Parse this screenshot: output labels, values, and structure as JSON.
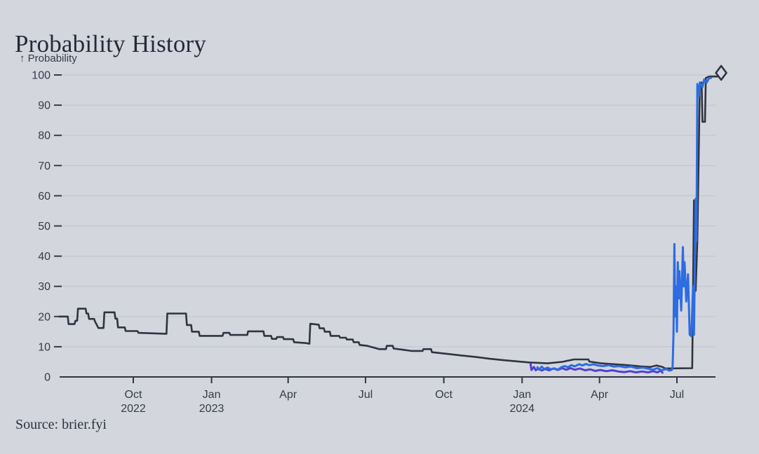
{
  "page": {
    "title": "Probability History",
    "y_axis_title": "↑ Probability",
    "source": "Source: brier.fyi"
  },
  "colors": {
    "background": "#d4d6de",
    "title_text": "#242a38",
    "axis_text": "#353b49",
    "gridline": "#c2c5cf",
    "baseline": "#2f3542",
    "series_dark": "#2e3440",
    "series_blue": "#2d6ce2",
    "series_purple": "#5340cf"
  },
  "chart_data": {
    "type": "line",
    "title": "Probability History",
    "ylabel": "Probability",
    "xlabel": "",
    "ylim": [
      0,
      100
    ],
    "grid": "horizontal",
    "legend": "none",
    "x_domain": [
      "2022-07-06",
      "2024-08-22"
    ],
    "y_ticks": [
      0,
      10,
      20,
      30,
      40,
      50,
      60,
      70,
      80,
      90,
      100
    ],
    "x_ticks": [
      {
        "date": "2022-10-01",
        "label": "Oct",
        "year": "2022"
      },
      {
        "date": "2023-01-01",
        "label": "Jan",
        "year": "2023"
      },
      {
        "date": "2023-04-01",
        "label": "Apr",
        "year": ""
      },
      {
        "date": "2023-07-01",
        "label": "Jul",
        "year": ""
      },
      {
        "date": "2023-10-01",
        "label": "Oct",
        "year": ""
      },
      {
        "date": "2024-01-01",
        "label": "Jan",
        "year": "2024"
      },
      {
        "date": "2024-04-01",
        "label": "Apr",
        "year": ""
      },
      {
        "date": "2024-07-01",
        "label": "Jul",
        "year": ""
      }
    ],
    "series": [
      {
        "name": "market-dark",
        "color_key": "series_dark",
        "stroke_width": 2.6,
        "points": [
          [
            "2022-07-06",
            20
          ],
          [
            "2022-07-16",
            20
          ],
          [
            "2022-07-17",
            17.5
          ],
          [
            "2022-07-24",
            17.5
          ],
          [
            "2022-07-25",
            18.6
          ],
          [
            "2022-07-27",
            18.6
          ],
          [
            "2022-07-28",
            22.6
          ],
          [
            "2022-08-06",
            22.6
          ],
          [
            "2022-08-07",
            21
          ],
          [
            "2022-08-09",
            21
          ],
          [
            "2022-08-10",
            19.2
          ],
          [
            "2022-08-16",
            19.2
          ],
          [
            "2022-08-17",
            18.4
          ],
          [
            "2022-08-21",
            16.2
          ],
          [
            "2022-08-27",
            16.2
          ],
          [
            "2022-08-28",
            21.4
          ],
          [
            "2022-09-09",
            21.4
          ],
          [
            "2022-09-10",
            19.3
          ],
          [
            "2022-09-12",
            19.3
          ],
          [
            "2022-09-13",
            16.4
          ],
          [
            "2022-09-21",
            16.4
          ],
          [
            "2022-09-22",
            15.2
          ],
          [
            "2022-10-06",
            15.2
          ],
          [
            "2022-10-07",
            14.6
          ],
          [
            "2022-11-09",
            14.3
          ],
          [
            "2022-11-10",
            21
          ],
          [
            "2022-12-02",
            21
          ],
          [
            "2022-12-03",
            17.2
          ],
          [
            "2022-12-08",
            17.2
          ],
          [
            "2022-12-09",
            15
          ],
          [
            "2022-12-17",
            15
          ],
          [
            "2022-12-18",
            13.6
          ],
          [
            "2023-01-14",
            13.6
          ],
          [
            "2023-01-15",
            14.6
          ],
          [
            "2023-01-22",
            14.6
          ],
          [
            "2023-01-23",
            13.9
          ],
          [
            "2023-02-12",
            13.9
          ],
          [
            "2023-02-13",
            15.1
          ],
          [
            "2023-03-03",
            15.1
          ],
          [
            "2023-03-04",
            13.6
          ],
          [
            "2023-03-12",
            13.6
          ],
          [
            "2023-03-13",
            12.6
          ],
          [
            "2023-03-18",
            12.6
          ],
          [
            "2023-03-19",
            13.2
          ],
          [
            "2023-03-26",
            13.2
          ],
          [
            "2023-03-27",
            12.5
          ],
          [
            "2023-04-07",
            12.5
          ],
          [
            "2023-04-08",
            11.5
          ],
          [
            "2023-04-22",
            11.2
          ],
          [
            "2023-04-26",
            11
          ],
          [
            "2023-04-27",
            17.6
          ],
          [
            "2023-05-07",
            17.3
          ],
          [
            "2023-05-08",
            16.1
          ],
          [
            "2023-05-13",
            16.1
          ],
          [
            "2023-05-14",
            15
          ],
          [
            "2023-05-20",
            15
          ],
          [
            "2023-05-21",
            13.6
          ],
          [
            "2023-05-31",
            13.6
          ],
          [
            "2023-06-01",
            13
          ],
          [
            "2023-06-08",
            13
          ],
          [
            "2023-06-09",
            12.4
          ],
          [
            "2023-06-16",
            12.4
          ],
          [
            "2023-06-17",
            11.5
          ],
          [
            "2023-06-23",
            11.5
          ],
          [
            "2023-06-24",
            10.6
          ],
          [
            "2023-07-03",
            10.3
          ],
          [
            "2023-07-17",
            9.2
          ],
          [
            "2023-07-25",
            9.2
          ],
          [
            "2023-07-26",
            10.3
          ],
          [
            "2023-08-02",
            10.3
          ],
          [
            "2023-08-03",
            9.4
          ],
          [
            "2023-08-14",
            9
          ],
          [
            "2023-08-24",
            8.6
          ],
          [
            "2023-09-06",
            8.6
          ],
          [
            "2023-09-07",
            9.2
          ],
          [
            "2023-09-16",
            9.2
          ],
          [
            "2023-09-17",
            8.2
          ],
          [
            "2023-10-03",
            7.7
          ],
          [
            "2023-10-22",
            7.1
          ],
          [
            "2023-11-08",
            6.6
          ],
          [
            "2023-11-24",
            6
          ],
          [
            "2023-12-09",
            5.6
          ],
          [
            "2023-12-24",
            5.2
          ],
          [
            "2024-01-09",
            4.8
          ],
          [
            "2024-01-31",
            4.5
          ],
          [
            "2024-02-17",
            5
          ],
          [
            "2024-03-02",
            5.8
          ],
          [
            "2024-03-19",
            5.8
          ],
          [
            "2024-03-20",
            5.1
          ],
          [
            "2024-04-03",
            4.5
          ],
          [
            "2024-04-19",
            4.2
          ],
          [
            "2024-05-04",
            3.9
          ],
          [
            "2024-05-19",
            3.5
          ],
          [
            "2024-05-31",
            3.3
          ],
          [
            "2024-06-07",
            3.8
          ],
          [
            "2024-06-14",
            3.3
          ],
          [
            "2024-06-17",
            2.8
          ],
          [
            "2024-07-19",
            2.9
          ],
          [
            "2024-07-21",
            58.5
          ],
          [
            "2024-07-23",
            28.5
          ],
          [
            "2024-07-25",
            45
          ],
          [
            "2024-07-28",
            97.5
          ],
          [
            "2024-07-30",
            97.5
          ],
          [
            "2024-07-31",
            84.5
          ],
          [
            "2024-08-03",
            84.5
          ],
          [
            "2024-08-04",
            99
          ],
          [
            "2024-08-08",
            99.5
          ],
          [
            "2024-08-19",
            99.5
          ],
          [
            "2024-08-20",
            100.3
          ]
        ]
      },
      {
        "name": "market-purple",
        "color_key": "series_purple",
        "stroke_width": 3,
        "points": [
          [
            "2024-01-11",
            4.3
          ],
          [
            "2024-01-12",
            2.3
          ],
          [
            "2024-01-15",
            3.3
          ],
          [
            "2024-01-17",
            2.2
          ],
          [
            "2024-01-20",
            2.8
          ],
          [
            "2024-01-24",
            2.1
          ],
          [
            "2024-01-28",
            2.6
          ],
          [
            "2024-02-02",
            2.2
          ],
          [
            "2024-02-07",
            2.8
          ],
          [
            "2024-02-12",
            2.3
          ],
          [
            "2024-02-17",
            2.9
          ],
          [
            "2024-02-22",
            2.4
          ],
          [
            "2024-02-27",
            2.9
          ],
          [
            "2024-03-03",
            2.4
          ],
          [
            "2024-03-09",
            2.8
          ],
          [
            "2024-03-15",
            2.2
          ],
          [
            "2024-03-21",
            2.5
          ],
          [
            "2024-03-27",
            2.0
          ],
          [
            "2024-04-02",
            2.3
          ],
          [
            "2024-04-09",
            1.9
          ],
          [
            "2024-04-16",
            2.2
          ],
          [
            "2024-04-23",
            1.8
          ],
          [
            "2024-04-30",
            1.6
          ],
          [
            "2024-05-07",
            1.9
          ],
          [
            "2024-05-14",
            1.5
          ],
          [
            "2024-05-21",
            1.8
          ],
          [
            "2024-05-28",
            1.5
          ],
          [
            "2024-06-03",
            1.9
          ],
          [
            "2024-06-08",
            1.5
          ],
          [
            "2024-06-12",
            2.1
          ],
          [
            "2024-06-14",
            1.4
          ]
        ]
      },
      {
        "name": "market-blue",
        "color_key": "series_blue",
        "stroke_width": 3,
        "points": [
          [
            "2024-01-19",
            3.2
          ],
          [
            "2024-01-21",
            2.4
          ],
          [
            "2024-01-24",
            3.4
          ],
          [
            "2024-01-27",
            2.6
          ],
          [
            "2024-01-31",
            3.1
          ],
          [
            "2024-02-04",
            2.5
          ],
          [
            "2024-02-08",
            2.8
          ],
          [
            "2024-02-12",
            2.4
          ],
          [
            "2024-02-16",
            3.2
          ],
          [
            "2024-02-20",
            3.6
          ],
          [
            "2024-02-24",
            3.2
          ],
          [
            "2024-02-28",
            3.9
          ],
          [
            "2024-03-03",
            3.5
          ],
          [
            "2024-03-08",
            4.2
          ],
          [
            "2024-03-12",
            3.8
          ],
          [
            "2024-03-16",
            4.3
          ],
          [
            "2024-03-20",
            3.9
          ],
          [
            "2024-03-25",
            4.2
          ],
          [
            "2024-03-30",
            3.8
          ],
          [
            "2024-04-05",
            3.6
          ],
          [
            "2024-04-12",
            3.9
          ],
          [
            "2024-04-18",
            3.4
          ],
          [
            "2024-04-24",
            3.6
          ],
          [
            "2024-05-01",
            3.2
          ],
          [
            "2024-05-08",
            3.4
          ],
          [
            "2024-05-15",
            2.9
          ],
          [
            "2024-05-22",
            3.1
          ],
          [
            "2024-05-29",
            2.7
          ],
          [
            "2024-06-03",
            2.4
          ],
          [
            "2024-06-08",
            2.9
          ],
          [
            "2024-06-13",
            2.2
          ],
          [
            "2024-06-18",
            2.6
          ],
          [
            "2024-06-22",
            2.1
          ],
          [
            "2024-06-25",
            2.3
          ],
          [
            "2024-06-26",
            3.6
          ],
          [
            "2024-06-27",
            14
          ],
          [
            "2024-06-28",
            44
          ],
          [
            "2024-06-29",
            20
          ],
          [
            "2024-06-30",
            30
          ],
          [
            "2024-07-01",
            15
          ],
          [
            "2024-07-02",
            38
          ],
          [
            "2024-07-03",
            26
          ],
          [
            "2024-07-04",
            35
          ],
          [
            "2024-07-06",
            22
          ],
          [
            "2024-07-08",
            43
          ],
          [
            "2024-07-09",
            30
          ],
          [
            "2024-07-10",
            38
          ],
          [
            "2024-07-12",
            25
          ],
          [
            "2024-07-14",
            34
          ],
          [
            "2024-07-16",
            14
          ],
          [
            "2024-07-18",
            13.5
          ],
          [
            "2024-07-20",
            30
          ],
          [
            "2024-07-21",
            14
          ],
          [
            "2024-07-23",
            59
          ],
          [
            "2024-07-24",
            45
          ],
          [
            "2024-07-25",
            97
          ],
          [
            "2024-07-27",
            93
          ],
          [
            "2024-07-28",
            97.5
          ],
          [
            "2024-07-31",
            96
          ],
          [
            "2024-08-02",
            98.5
          ],
          [
            "2024-08-05",
            97.5
          ],
          [
            "2024-08-08",
            99
          ],
          [
            "2024-08-10",
            99
          ]
        ]
      }
    ],
    "end_marker": {
      "shape": "diamond",
      "series": "market-dark",
      "date": "2024-08-22",
      "value": 100.7
    }
  }
}
